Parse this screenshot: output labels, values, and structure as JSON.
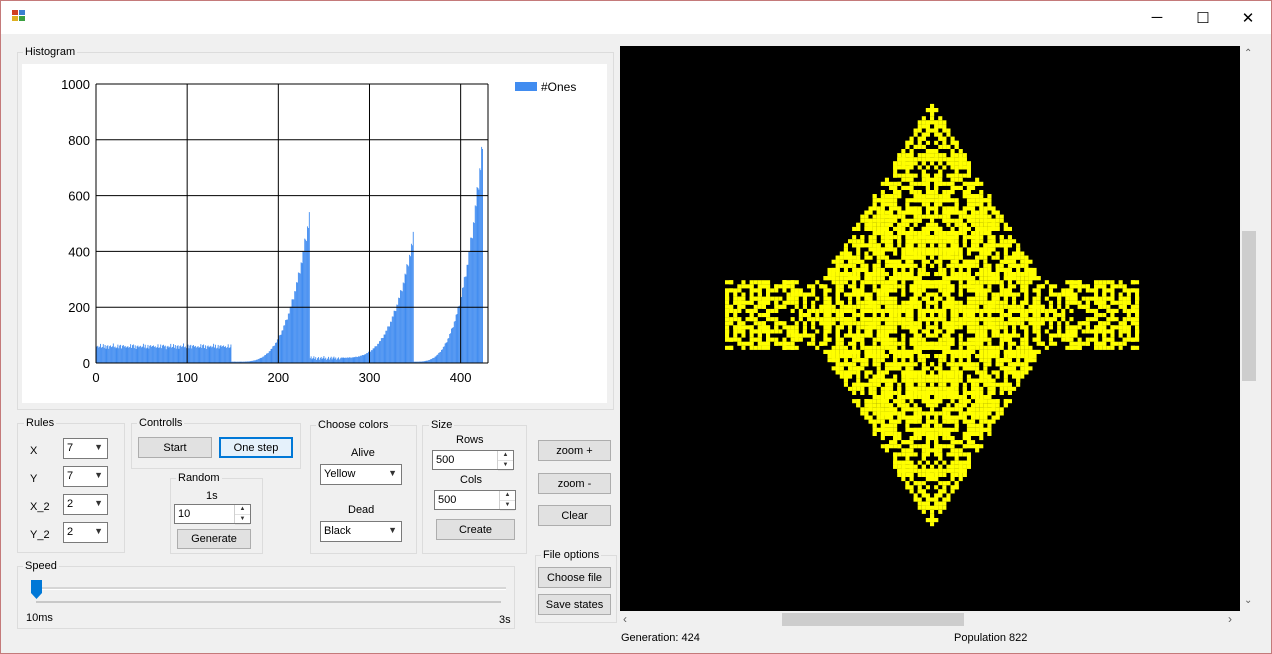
{
  "window": {
    "minimize": "─",
    "maximize": "☐",
    "close": "✕"
  },
  "histogram": {
    "group_label": "Histogram",
    "chart_data": {
      "type": "bar",
      "title": "",
      "xlabel": "",
      "ylabel": "",
      "series": [
        {
          "name": "#Ones",
          "color": "#418cf0"
        }
      ],
      "xlim": [
        0,
        430
      ],
      "ylim": [
        0,
        1000
      ],
      "x_ticks": [
        "0",
        "100",
        "200",
        "300",
        "400"
      ],
      "y_ticks": [
        "0",
        "200",
        "400",
        "600",
        "800",
        "1000"
      ],
      "segments": [
        {
          "x_start": 1,
          "x_end": 148,
          "y_start": 55,
          "y_end": 70,
          "shape": "flat"
        },
        {
          "x_start": 149,
          "x_end": 155,
          "y_start": 5,
          "y_end": 5,
          "shape": "flat"
        },
        {
          "x_start": 156,
          "x_end": 234,
          "y_start": 5,
          "y_end": 550,
          "shape": "growth"
        },
        {
          "x_start": 235,
          "x_end": 268,
          "y_start": 12,
          "y_end": 25,
          "shape": "flat"
        },
        {
          "x_start": 269,
          "x_end": 348,
          "y_start": 20,
          "y_end": 470,
          "shape": "growth"
        },
        {
          "x_start": 349,
          "x_end": 424,
          "y_start": 5,
          "y_end": 822,
          "shape": "growth"
        }
      ],
      "grid": true,
      "legend": "top-right"
    }
  },
  "rules": {
    "label": "Rules",
    "items": [
      {
        "name": "X",
        "value": "7"
      },
      {
        "name": "Y",
        "value": "7"
      },
      {
        "name": "X_2",
        "value": "2"
      },
      {
        "name": "Y_2",
        "value": "2"
      }
    ]
  },
  "controls": {
    "label": "Controlls",
    "start": "Start",
    "one_step": "One step"
  },
  "random": {
    "label": "Random",
    "sub": "1s",
    "value": "10",
    "generate": "Generate"
  },
  "colors": {
    "label": "Choose colors",
    "alive_label": "Alive",
    "alive": "Yellow",
    "dead_label": "Dead",
    "dead": "Black"
  },
  "size": {
    "label": "Size",
    "rows_label": "Rows",
    "rows": "500",
    "cols_label": "Cols",
    "cols": "500",
    "create": "Create"
  },
  "zoom": {
    "plus": "zoom +",
    "minus": "zoom -",
    "clear": "Clear"
  },
  "file": {
    "label": "File options",
    "choose": "Choose file",
    "save": "Save states"
  },
  "speed": {
    "label": "Speed",
    "min": "10ms",
    "max": "3s",
    "value_fraction": 0.0
  },
  "status": {
    "generation": "Generation: 424",
    "population": "Population 822"
  },
  "colors_hex": {
    "alive": "#ffff00",
    "dead": "#000000",
    "bar": "#418cf0"
  }
}
